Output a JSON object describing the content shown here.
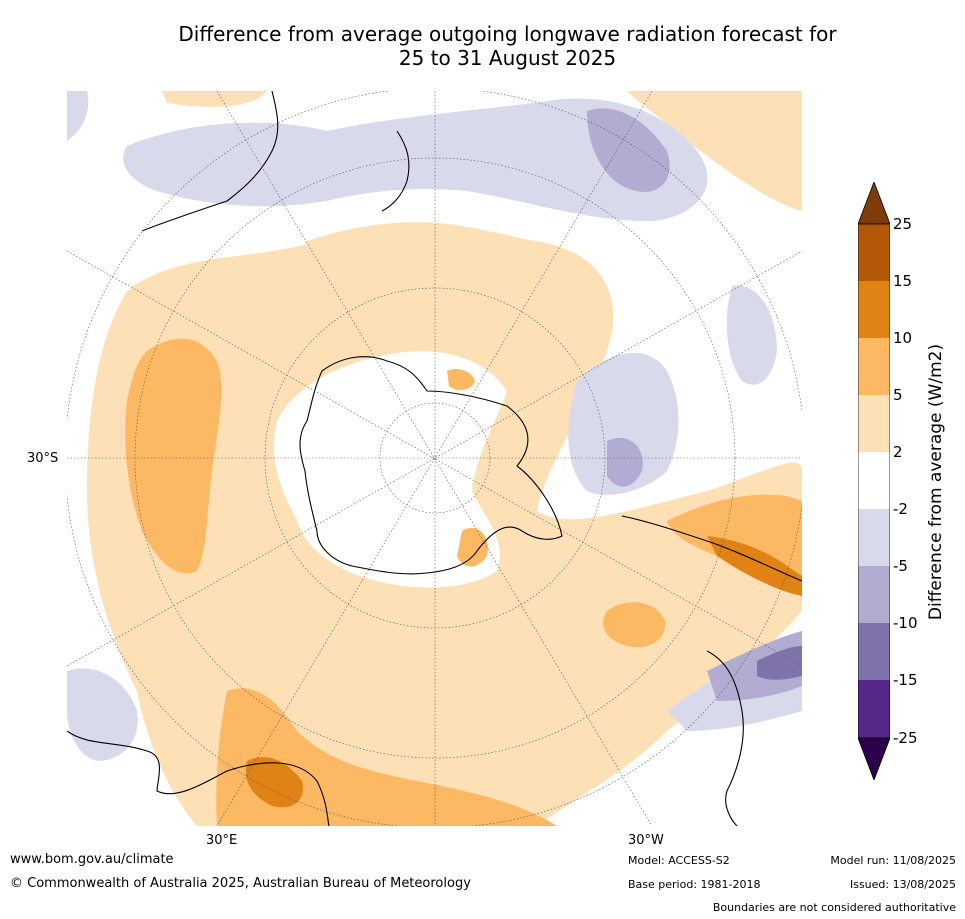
{
  "title_line1": "Difference from average outgoing longwave radiation forecast for",
  "title_line2": "25 to 31 August 2025",
  "lat_label": "30°S",
  "lon_label_left": "30°E",
  "lon_label_right": "30°W",
  "colorbar": {
    "title": "Difference from average (W/m2)",
    "levels": [
      "25",
      "15",
      "10",
      "5",
      "2",
      "-2",
      "-5",
      "-10",
      "-15",
      "-25"
    ],
    "colors": {
      "above_25": "#7f3b08",
      "15_25": "#b35806",
      "10_15": "#e08214",
      "5_10": "#fdb863",
      "2_5": "#fee0b6",
      "-2_2": "#ffffff",
      "-5_-2": "#d8daeb",
      "-10_-5": "#b2abd2",
      "-15_-10": "#8073ac",
      "-25_-15": "#542788",
      "below_-25": "#2d004b"
    }
  },
  "footer": {
    "website": "www.bom.gov.au/climate",
    "copyright": "© Commonwealth of Australia 2025, Australian Bureau of Meteorology",
    "model": "Model: ACCESS-S2",
    "base_period": "Base period: 1981-2018",
    "model_run": "Model run: 11/08/2025",
    "issued": "Issued: 13/08/2025",
    "disclaimer": "Boundaries are not considered authoritative"
  }
}
